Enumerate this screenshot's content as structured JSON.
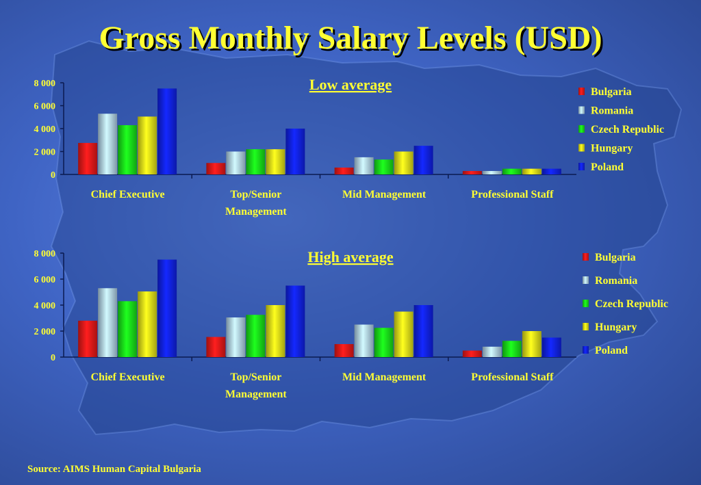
{
  "title": "Gross Monthly Salary Levels (USD)",
  "source": "Source: AIMS Human Capital Bulgaria",
  "colors": {
    "Bulgaria": "#e01818",
    "Romania": "#a8c8e0",
    "Czech Republic": "#18d818",
    "Hungary": "#d8d818",
    "Poland": "#1020e0"
  },
  "chart_data": [
    {
      "type": "bar",
      "title": "Low average",
      "categories": [
        "Chief Executive",
        "Top/Senior\nManagement",
        "Mid Management",
        "Professional Staff"
      ],
      "ylim": [
        0,
        8000
      ],
      "yticks": [
        "8 000",
        "6 000",
        "4 000",
        "2 000",
        "0"
      ],
      "legend": "right",
      "series": [
        {
          "name": "Bulgaria",
          "values": [
            2750,
            1000,
            600,
            300
          ]
        },
        {
          "name": "Romania",
          "values": [
            5300,
            2000,
            1500,
            300
          ]
        },
        {
          "name": "Czech Republic",
          "values": [
            4300,
            2200,
            1300,
            500
          ]
        },
        {
          "name": "Hungary",
          "values": [
            5050,
            2200,
            2000,
            500
          ]
        },
        {
          "name": "Poland",
          "values": [
            7500,
            4000,
            2500,
            500
          ]
        }
      ]
    },
    {
      "type": "bar",
      "title": "High average",
      "categories": [
        "Chief Executive",
        "Top/Senior\nManagement",
        "Mid Management",
        "Professional Staff"
      ],
      "ylim": [
        0,
        8000
      ],
      "yticks": [
        "8 000",
        "6 000",
        "4 000",
        "2 000",
        "0"
      ],
      "legend": "right",
      "series": [
        {
          "name": "Bulgaria",
          "values": [
            2800,
            1550,
            1000,
            500
          ]
        },
        {
          "name": "Romania",
          "values": [
            5300,
            3050,
            2500,
            800
          ]
        },
        {
          "name": "Czech Republic",
          "values": [
            4300,
            3250,
            2250,
            1250
          ]
        },
        {
          "name": "Hungary",
          "values": [
            5050,
            4000,
            3500,
            2000
          ]
        },
        {
          "name": "Poland",
          "values": [
            7500,
            5500,
            4000,
            1500
          ]
        }
      ]
    }
  ]
}
